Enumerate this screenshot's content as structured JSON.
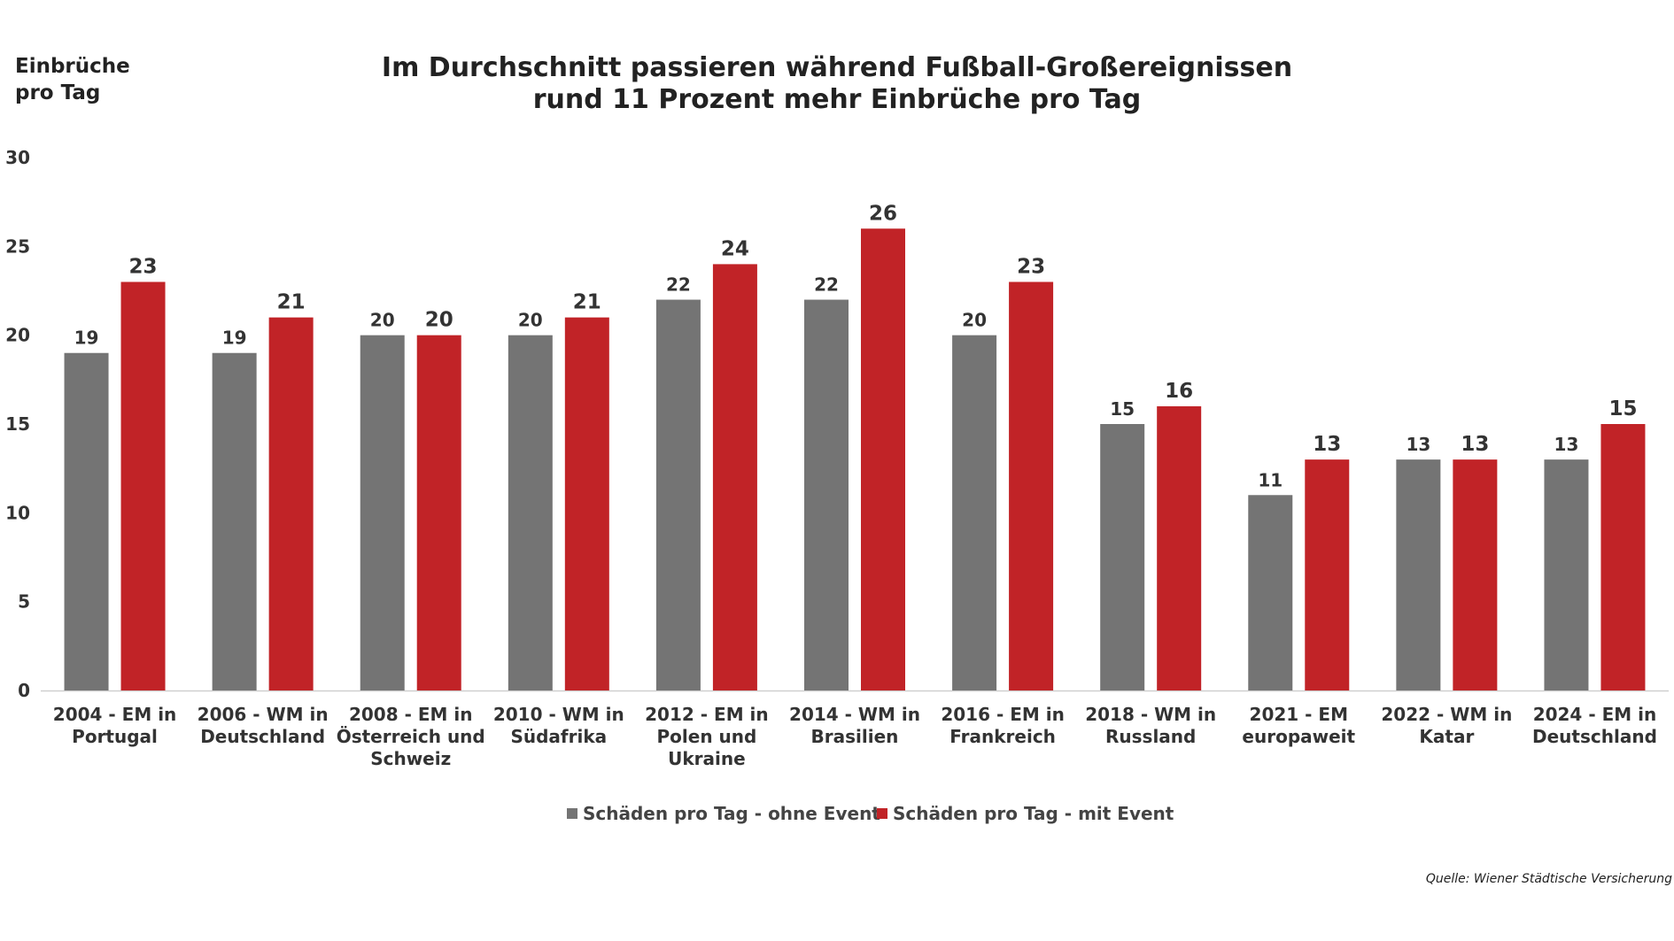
{
  "header": {
    "y_axis_label_line1": "Einbrüche",
    "y_axis_label_line2": "pro Tag",
    "title_line1": "Im Durchschnitt passieren während Fußball-Großereignissen",
    "title_line2": "rund 11 Prozent mehr Einbrüche pro Tag"
  },
  "source": "Quelle: Wiener Städtische Versicherung",
  "colors": {
    "ohne": "#747474",
    "mit": "#c12327"
  },
  "chart_data": {
    "type": "bar",
    "title": "Im Durchschnitt passieren während Fußball-Großereignissen rund 11 Prozent mehr Einbrüche pro Tag",
    "ylabel": "Einbrüche pro Tag",
    "ylim": [
      0,
      30
    ],
    "yticks": [
      0,
      5,
      10,
      15,
      20,
      25,
      30
    ],
    "grid": false,
    "legend": "bottom",
    "categories": [
      [
        "2004 - EM in",
        "Portugal"
      ],
      [
        "2006 - WM in",
        "Deutschland"
      ],
      [
        "2008 - EM in",
        "Österreich und",
        "Schweiz"
      ],
      [
        "2010 - WM in",
        "Südafrika"
      ],
      [
        "2012 - EM in",
        "Polen und",
        "Ukraine"
      ],
      [
        "2014 - WM in",
        "Brasilien"
      ],
      [
        "2016 - EM in",
        "Frankreich"
      ],
      [
        "2018 - WM in",
        "Russland"
      ],
      [
        "2021 - EM",
        "europaweit"
      ],
      [
        "2022 - WM in",
        "Katar"
      ],
      [
        "2024 - EM in",
        "Deutschland"
      ]
    ],
    "series": [
      {
        "name": "Schäden pro Tag - ohne Event",
        "color": "#747474",
        "values": [
          19,
          19,
          20,
          20,
          22,
          22,
          20,
          15,
          11,
          13,
          13
        ]
      },
      {
        "name": "Schäden pro Tag - mit Event",
        "color": "#c12327",
        "values": [
          23,
          21,
          20,
          21,
          24,
          26,
          23,
          16,
          13,
          13,
          15
        ]
      }
    ]
  }
}
